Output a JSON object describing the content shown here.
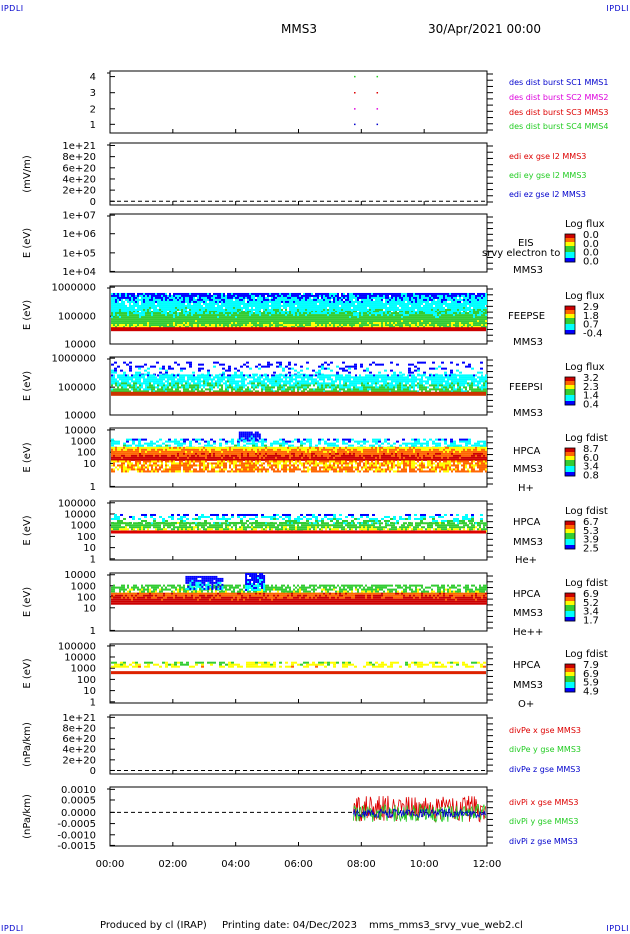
{
  "corners": {
    "top_left": "IPDLI",
    "top_right": "IPDLI",
    "bottom_left": "IPDLI",
    "bottom_right": "IPDLI"
  },
  "header": {
    "spacecraft": "MMS3",
    "date": "30/Apr/2021 00:00"
  },
  "footer": {
    "produced_by": "Produced by cl (IRAP)",
    "printing_date": "Printing date: 04/Dec/2023",
    "file_name": "mms_mms3_srvy_vue_web2.cl"
  },
  "colors": {
    "red": "#dd0000",
    "green": "#22cc22",
    "blue": "#0000cc",
    "magenta": "#dd00dd",
    "black": "#000000"
  },
  "chart_data": [
    {
      "type": "scatter",
      "panel": "burst-flags",
      "y_ticks": [
        "4",
        "3",
        "2",
        "1"
      ],
      "legend": [
        {
          "text": "des dist burst SC1 MMS1",
          "color": "#0000cc"
        },
        {
          "text": "des dist burst SC2 MMS2",
          "color": "#dd00dd"
        },
        {
          "text": "des dist burst SC3 MMS3",
          "color": "#dd0000"
        },
        {
          "text": "des dist burst SC4 MMS4",
          "color": "#22cc22"
        }
      ],
      "markers": [
        {
          "x": "07:47",
          "y": 4
        },
        {
          "x": "08:30",
          "y": 4
        },
        {
          "x": "07:47",
          "y": 3
        },
        {
          "x": "08:30",
          "y": 3
        },
        {
          "x": "07:47",
          "y": 2
        },
        {
          "x": "08:30",
          "y": 2
        },
        {
          "x": "07:47",
          "y": 1
        },
        {
          "x": "08:30",
          "y": 1
        }
      ]
    },
    {
      "type": "line",
      "panel": "edi-efield",
      "ylabel": "(mV/m)",
      "y_ticks": [
        "1e+21",
        "8e+20",
        "6e+20",
        "4e+20",
        "2e+20",
        "0"
      ],
      "legend": [
        {
          "text": "edi ex gse l2 MMS3",
          "color": "#dd0000"
        },
        {
          "text": "edi ey gse l2 MMS3",
          "color": "#22cc22"
        },
        {
          "text": "edi ez gse l2 MMS3",
          "color": "#0000cc"
        }
      ]
    },
    {
      "type": "heatmap",
      "panel": "eis",
      "ylabel": "E (eV)",
      "y_ticks": [
        "1e+07",
        "1e+06",
        "1e+05",
        "1e+04"
      ],
      "labels": [
        "EIS",
        "MMS3"
      ],
      "overlay_text": "srvy electron to",
      "colorbar": {
        "title": "Log flux",
        "ticks": [
          "0.0",
          "0.0",
          "0.0",
          "0.0"
        ]
      }
    },
    {
      "type": "heatmap",
      "panel": "feepse",
      "ylabel": "E (eV)",
      "y_ticks": [
        "1000000",
        "100000",
        "10000"
      ],
      "labels": [
        "FEEPSE",
        "MMS3"
      ],
      "colorbar": {
        "title": "Log flux",
        "ticks": [
          "2.9",
          "1.8",
          "0.7",
          "-0.4"
        ]
      }
    },
    {
      "type": "heatmap",
      "panel": "feepsi",
      "ylabel": "E (eV)",
      "y_ticks": [
        "1000000",
        "100000",
        "10000"
      ],
      "labels": [
        "FEEPSI",
        "MMS3"
      ],
      "colorbar": {
        "title": "Log flux",
        "ticks": [
          "3.2",
          "2.3",
          "1.4",
          "0.4"
        ]
      }
    },
    {
      "type": "heatmap",
      "panel": "hpca-h",
      "ylabel": "E (eV)",
      "y_ticks": [
        "10000",
        "1000",
        "100",
        "10",
        "1"
      ],
      "labels": [
        "HPCA",
        "MMS3",
        "H+"
      ],
      "colorbar": {
        "title": "Log fdist",
        "ticks": [
          "8.7",
          "6.0",
          "3.4",
          "0.8"
        ]
      }
    },
    {
      "type": "heatmap",
      "panel": "hpca-he",
      "ylabel": "E (eV)",
      "y_ticks": [
        "100000",
        "10000",
        "1000",
        "100",
        "10",
        "1"
      ],
      "labels": [
        "HPCA",
        "MMS3",
        "He+"
      ],
      "colorbar": {
        "title": "Log fdist",
        "ticks": [
          "6.7",
          "5.3",
          "3.9",
          "2.5"
        ]
      }
    },
    {
      "type": "heatmap",
      "panel": "hpca-hepp",
      "ylabel": "E (eV)",
      "y_ticks": [
        "10000",
        "1000",
        "100",
        "10",
        "1"
      ],
      "labels": [
        "HPCA",
        "MMS3",
        "He++"
      ],
      "colorbar": {
        "title": "Log fdist",
        "ticks": [
          "6.9",
          "5.2",
          "3.4",
          "1.7"
        ]
      }
    },
    {
      "type": "heatmap",
      "panel": "hpca-o",
      "ylabel": "E (eV)",
      "y_ticks": [
        "100000",
        "10000",
        "1000",
        "100",
        "10",
        "1"
      ],
      "labels": [
        "HPCA",
        "MMS3",
        "O+"
      ],
      "colorbar": {
        "title": "Log fdist",
        "ticks": [
          "7.9",
          "6.9",
          "5.9",
          "4.9"
        ]
      }
    },
    {
      "type": "line",
      "panel": "divpe",
      "ylabel": "(nPa/km)",
      "y_ticks": [
        "1e+21",
        "8e+20",
        "6e+20",
        "4e+20",
        "2e+20",
        "0"
      ],
      "legend": [
        {
          "text": "divPe x gse MMS3",
          "color": "#dd0000"
        },
        {
          "text": "divPe y gse MMS3",
          "color": "#22cc22"
        },
        {
          "text": "divPe z gse MMS3",
          "color": "#0000cc"
        }
      ]
    },
    {
      "type": "line",
      "panel": "divpi",
      "ylabel": "(nPa/km)",
      "y_ticks": [
        "0.0010",
        "0.0005",
        "0.0000",
        "-0.0005",
        "-0.0010",
        "-0.0015"
      ],
      "legend": [
        {
          "text": "divPi x gse MMS3",
          "color": "#dd0000"
        },
        {
          "text": "divPi y gse MMS3",
          "color": "#22cc22"
        },
        {
          "text": "divPi z gse MMS3",
          "color": "#0000cc"
        }
      ],
      "data_start": "07:45",
      "data_end": "12:00",
      "y_range": [
        -0.0015,
        0.0012
      ]
    }
  ],
  "x_axis": {
    "ticks": [
      "00:00",
      "02:00",
      "04:00",
      "06:00",
      "08:00",
      "10:00",
      "12:00"
    ],
    "range": [
      "00:00",
      "12:00"
    ]
  }
}
